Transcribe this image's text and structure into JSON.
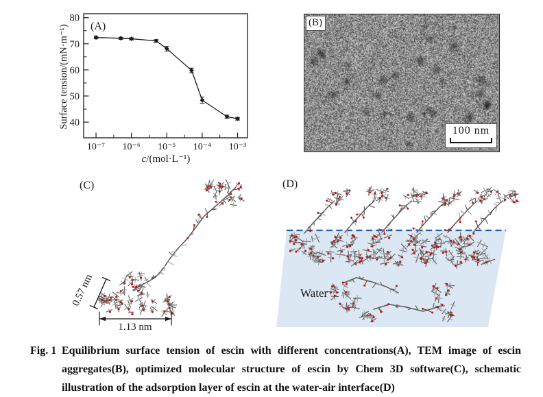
{
  "figure": {
    "panel_a": {
      "label": "(A)",
      "xlabel_var": "c",
      "xlabel_rest": "/(mol·L⁻¹)",
      "ylabel": "Surface tension/(mN·m⁻¹)"
    },
    "panel_b": {
      "label": "(B)",
      "scale_bar": "100 nm"
    },
    "panel_c": {
      "label": "(C)",
      "dim_width": "1.13 nm",
      "dim_height": "0.57 nm"
    },
    "panel_d": {
      "label": "(D)",
      "water_label": "Water"
    },
    "caption": {
      "fig_label": "Fig. 1",
      "lines": [
        "Equilibrium surface tension of escin with different concentrations(A), TEM image of escin",
        "aggregates(B), optimized molecular structure of escin by Chem 3D software(C), schematic",
        "illustration of the adsorption layer of escin at the water-air interface(D)"
      ]
    }
  },
  "chart_data": {
    "type": "line",
    "title": "",
    "xlabel": "c/(mol·L⁻¹)",
    "ylabel": "Surface tension/(mN·m⁻¹)",
    "xscale": "log",
    "x": [
      1e-07,
      5e-07,
      1e-06,
      5e-06,
      1e-05,
      5e-05,
      0.0001,
      0.0005,
      0.001
    ],
    "y": [
      72.4,
      72.1,
      71.9,
      71.1,
      68.1,
      59.8,
      48.4,
      42.1,
      41.3
    ],
    "yerr": [
      0.5,
      0.4,
      0.4,
      0.5,
      0.9,
      0.9,
      1.2,
      0.6,
      0.5
    ],
    "xlim_log10": [
      -7.35,
      -2.72
    ],
    "ylim": [
      34,
      81.5
    ],
    "yticks": [
      40,
      50,
      60,
      70,
      80
    ],
    "yticks_minor": [
      45,
      55,
      65,
      75
    ],
    "xtick_labels": [
      "10⁻⁷",
      "10⁻⁶",
      "10⁻⁵",
      "10⁻⁴",
      "10⁻³"
    ],
    "grid": false,
    "legend": null
  },
  "colors": {
    "ink": "#1a1a1a",
    "water_fill": "#dce7f4",
    "interface_line": "#1f5da8",
    "oxygen_red": "#b01c1c",
    "bond_gray": "#595959",
    "bond_light": "#9b9b9b"
  }
}
